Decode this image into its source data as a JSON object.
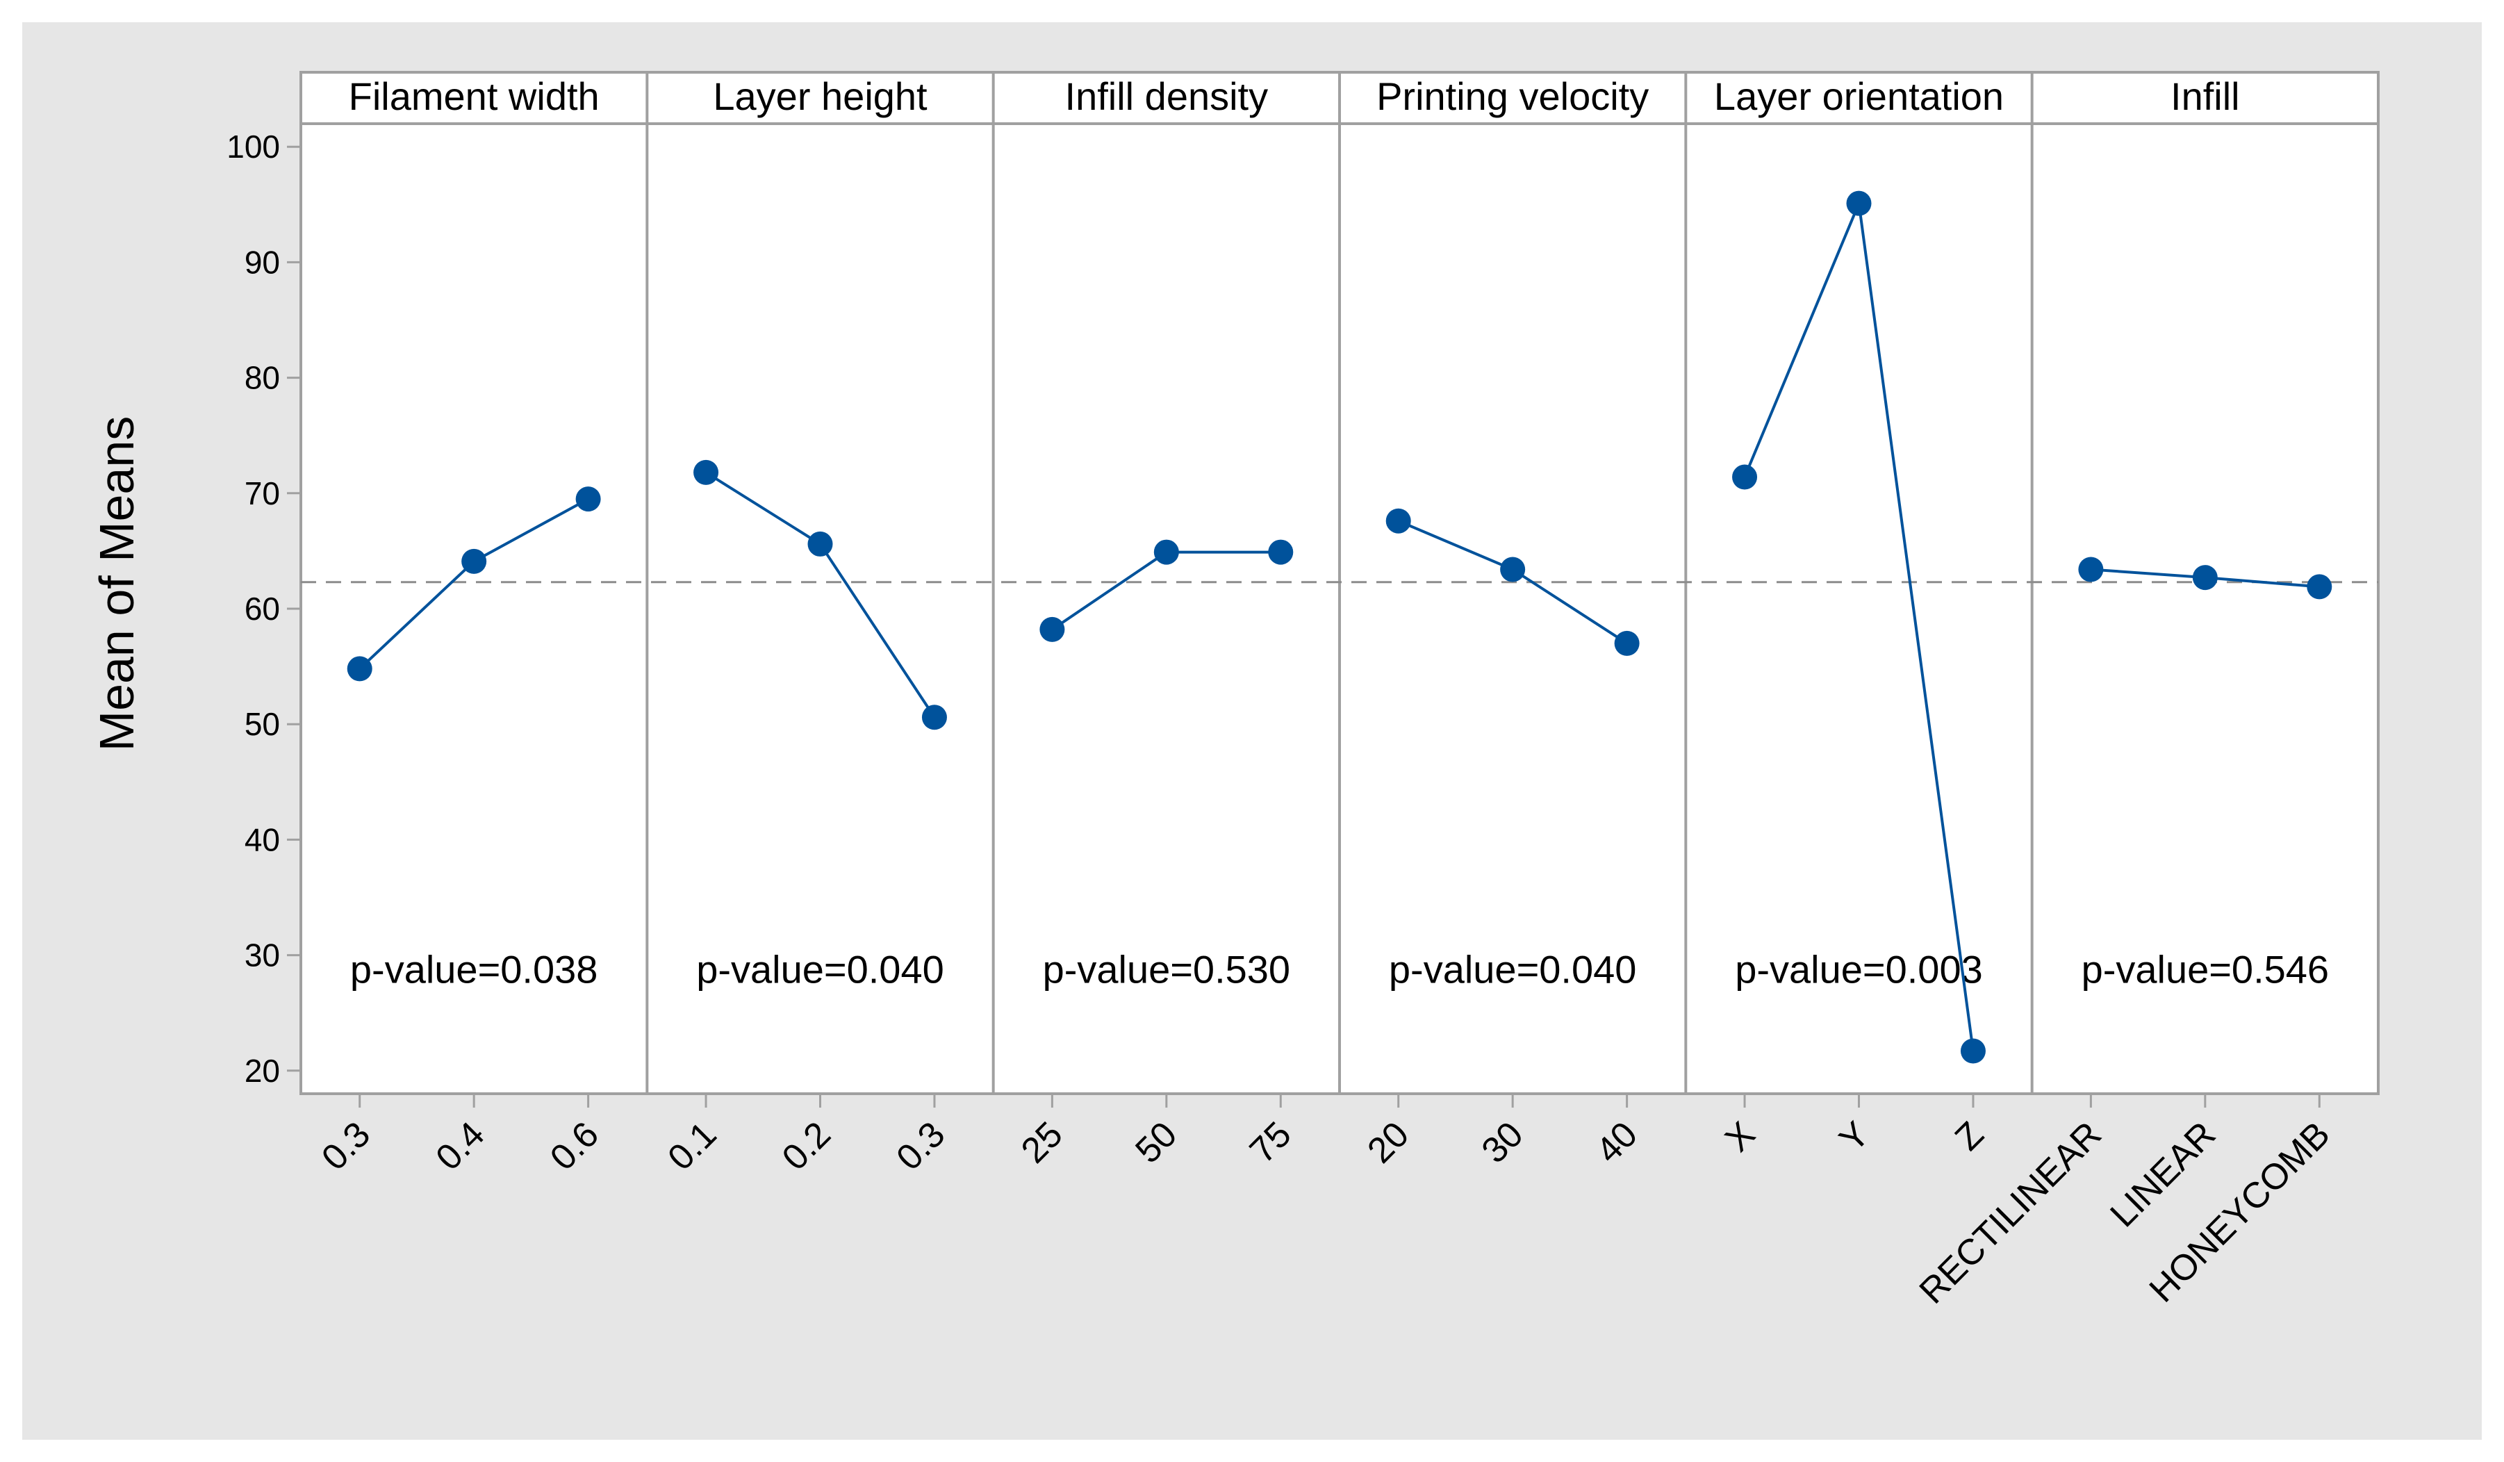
{
  "chart_data": {
    "type": "line",
    "ylabel": "Mean of Means",
    "ylim": [
      18,
      102
    ],
    "yticks": [
      20,
      30,
      40,
      50,
      60,
      70,
      80,
      90,
      100
    ],
    "reference_mean": 62.3,
    "colors": {
      "background": "#e6e6e6",
      "plot_background": "#ffffff",
      "frame": "#a0a0a0",
      "series": "#00529b",
      "reference_line": "#8c8c8c",
      "text": "#000000"
    },
    "panels": [
      {
        "name": "Filament width",
        "levels": [
          "0.3",
          "0.4",
          "0.6"
        ],
        "values": [
          54.8,
          64.1,
          69.5
        ],
        "p_value": "p-value=0.038"
      },
      {
        "name": "Layer height",
        "levels": [
          "0.1",
          "0.2",
          "0.3"
        ],
        "values": [
          71.8,
          65.6,
          50.6
        ],
        "p_value": "p-value=0.040"
      },
      {
        "name": "Infill density",
        "levels": [
          "25",
          "50",
          "75"
        ],
        "values": [
          58.2,
          64.9,
          64.9
        ],
        "p_value": "p-value=0.530"
      },
      {
        "name": "Printing velocity",
        "levels": [
          "20",
          "30",
          "40"
        ],
        "values": [
          67.6,
          63.4,
          57.0
        ],
        "p_value": "p-value=0.040"
      },
      {
        "name": "Layer orientation",
        "levels": [
          "X",
          "Y",
          "Z"
        ],
        "values": [
          71.4,
          95.1,
          21.7
        ],
        "p_value": "p-value=0.003"
      },
      {
        "name": "Infill",
        "levels": [
          "RECTILINEAR",
          "LINEAR",
          "HONEYCOMB"
        ],
        "values": [
          63.4,
          62.7,
          61.9
        ],
        "p_value": "p-value=0.546"
      }
    ]
  }
}
